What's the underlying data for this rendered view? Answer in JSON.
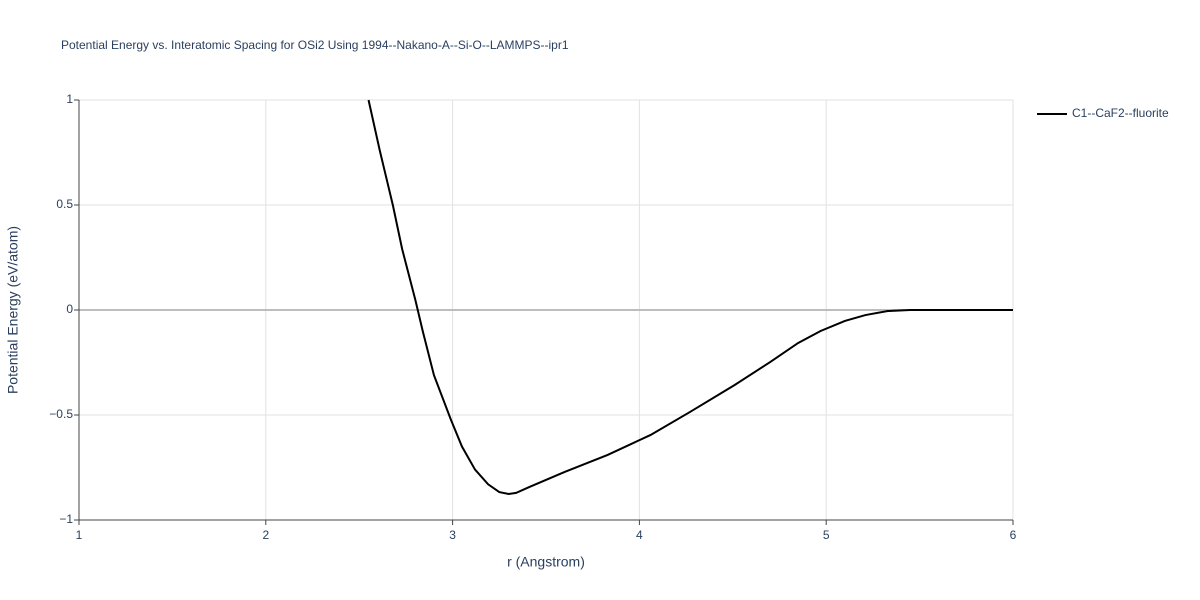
{
  "chart_data": {
    "type": "line",
    "title": "Potential Energy vs. Interatomic Spacing for OSi2 Using 1994--Nakano-A--Si-O--LAMMPS--ipr1",
    "x_label": "r (Angstrom)",
    "y_label": "Potential Energy (eV/atom)",
    "xlim": [
      1,
      6
    ],
    "xticks": [
      1,
      2,
      3,
      4,
      5,
      6
    ],
    "ylim": [
      -1,
      1
    ],
    "yticks": [
      {
        "value": -1,
        "label": "−1"
      },
      {
        "value": -0.5,
        "label": "−0.5"
      },
      0,
      0.5,
      1
    ],
    "grid": true,
    "legend": "right",
    "series": [
      {
        "name": "C1--CaF2--fluorite",
        "color": "#000000",
        "x": [
          2.55,
          2.61,
          2.68,
          2.73,
          2.8,
          2.84,
          2.9,
          2.99,
          3.05,
          3.12,
          3.19,
          3.25,
          3.3,
          3.34,
          3.41,
          3.6,
          3.83,
          4.06,
          4.27,
          4.51,
          4.7,
          4.85,
          4.97,
          5.1,
          5.21,
          5.33,
          5.45,
          6.0
        ],
        "values": [
          1.0,
          0.76,
          0.5,
          0.29,
          0.05,
          -0.1,
          -0.31,
          -0.52,
          -0.65,
          -0.76,
          -0.83,
          -0.867,
          -0.876,
          -0.871,
          -0.843,
          -0.771,
          -0.69,
          -0.595,
          -0.486,
          -0.357,
          -0.248,
          -0.157,
          -0.1,
          -0.052,
          -0.024,
          -0.005,
          0,
          0
        ]
      }
    ]
  }
}
